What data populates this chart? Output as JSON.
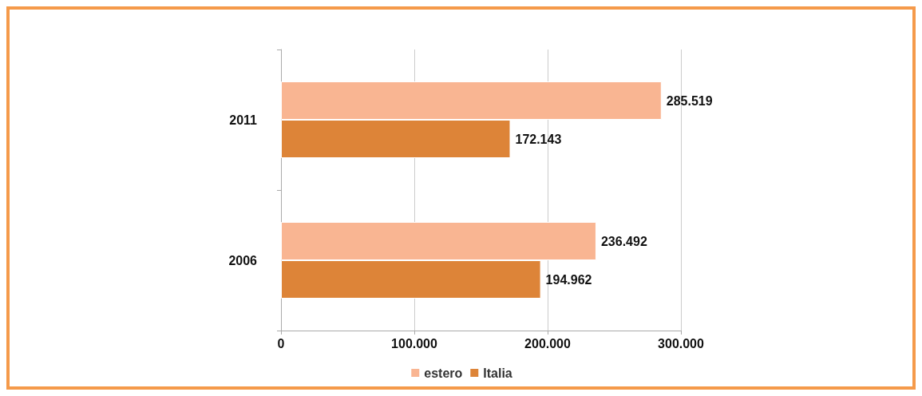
{
  "chart_data": {
    "type": "bar",
    "orientation": "horizontal",
    "categories": [
      "2011",
      "2006"
    ],
    "series": [
      {
        "name": "estero",
        "color": "#f9b592",
        "values": [
          285519,
          236492
        ],
        "value_labels": [
          "285.519",
          "236.492"
        ]
      },
      {
        "name": "Italia",
        "color": "#dd8438",
        "values": [
          172143,
          194962
        ],
        "value_labels": [
          "172.143",
          "194.962"
        ]
      }
    ],
    "xlim": [
      0,
      300000
    ],
    "xticks": [
      0,
      {
        "value": 100000,
        "label": "100.000"
      },
      {
        "value": 200000,
        "label": "200.000"
      },
      {
        "value": 300000,
        "label": "300.000"
      }
    ],
    "grid": "x",
    "legend": "bottom"
  }
}
